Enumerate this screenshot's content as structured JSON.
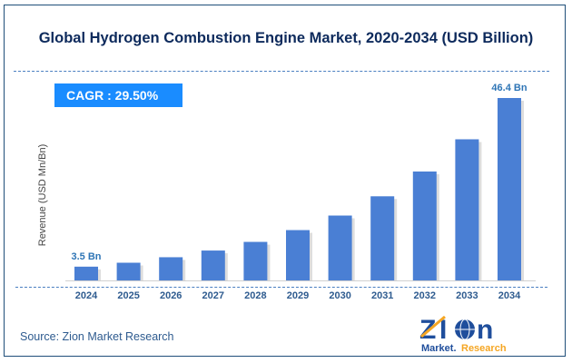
{
  "chart_data": {
    "type": "bar",
    "title": "Global Hydrogen Combustion Engine Market, 2020-2034 (USD Billion)",
    "ylabel": "Revenue (USD Mn/Bn)",
    "xlabel": "",
    "categories": [
      "2024",
      "2025",
      "2026",
      "2027",
      "2028",
      "2029",
      "2030",
      "2031",
      "2032",
      "2033",
      "2034"
    ],
    "values": [
      3.5,
      4.5,
      5.9,
      7.6,
      9.8,
      12.8,
      16.5,
      21.4,
      27.7,
      35.9,
      46.4
    ],
    "data_labels": {
      "2024": "3.5 Bn",
      "2034": "46.4 Bn"
    },
    "ylim": [
      0,
      50
    ],
    "grid": false,
    "bar_color": "#4a7fd4"
  },
  "cagr": "CAGR :  29.50%",
  "source": "Source: Zion Market Research",
  "logo": {
    "main": "Zion",
    "sub_left": "Market.",
    "sub_right": "Research"
  },
  "colors": {
    "title": "#0d2a5c",
    "cagr_bg": "#1a8cff",
    "axis_labels": "#2e5b8f",
    "logo_blue": "#1f4e9c",
    "logo_orange": "#f5a623"
  }
}
